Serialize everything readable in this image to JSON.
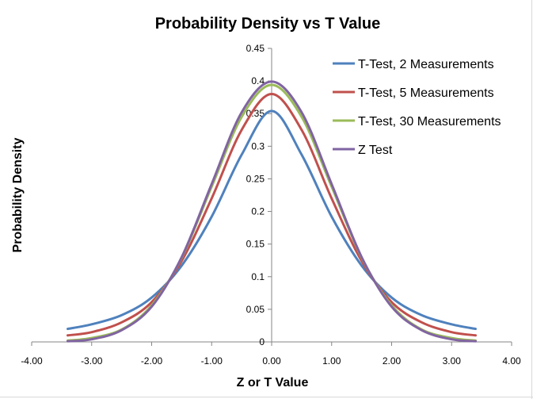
{
  "chart_data": {
    "type": "line",
    "title": "Probability Density vs T Value",
    "xlabel": "Z or T Value",
    "ylabel": "Probability Density",
    "xlim": [
      -4,
      4
    ],
    "ylim": [
      0,
      0.45
    ],
    "x_ticks": [
      -4,
      -3,
      -2,
      -1,
      0,
      1,
      2,
      3,
      4
    ],
    "x_tick_labels": [
      "-4.00",
      "-3.00",
      "-2.00",
      "-1.00",
      "0.00",
      "1.00",
      "2.00",
      "3.00",
      "4.00"
    ],
    "y_ticks": [
      0,
      0.05,
      0.1,
      0.15,
      0.2,
      0.25,
      0.3,
      0.35,
      0.4,
      0.45
    ],
    "y_tick_labels": [
      "0",
      "0.05",
      "0.1",
      "0.15",
      "0.2",
      "0.25",
      "0.3",
      "0.35",
      "0.4",
      "0.45"
    ],
    "grid": false,
    "legend_position": "top-right",
    "x": [
      -3.4,
      -3.0,
      -2.5,
      -2.0,
      -1.5,
      -1.0,
      -0.5,
      0.0,
      0.5,
      1.0,
      1.5,
      2.0,
      2.5,
      3.0,
      3.4
    ],
    "series": [
      {
        "name": "T-Test, 2 Measurements",
        "color": "#4f81bd",
        "values": [
          0.02,
          0.027,
          0.041,
          0.068,
          0.117,
          0.192,
          0.287,
          0.354,
          0.287,
          0.192,
          0.117,
          0.068,
          0.041,
          0.027,
          0.02
        ]
      },
      {
        "name": "T-Test, 5 Measurements",
        "color": "#c0504d",
        "values": [
          0.01,
          0.015,
          0.03,
          0.061,
          0.124,
          0.22,
          0.325,
          0.38,
          0.325,
          0.22,
          0.124,
          0.061,
          0.03,
          0.015,
          0.01
        ]
      },
      {
        "name": "T-Test, 30 Measurements",
        "color": "#9bbb59",
        "values": [
          0.002,
          0.006,
          0.019,
          0.056,
          0.129,
          0.238,
          0.345,
          0.394,
          0.345,
          0.238,
          0.129,
          0.056,
          0.019,
          0.006,
          0.002
        ]
      },
      {
        "name": "Z Test",
        "color": "#8064a2",
        "values": [
          0.001,
          0.004,
          0.018,
          0.054,
          0.13,
          0.242,
          0.352,
          0.399,
          0.352,
          0.242,
          0.13,
          0.054,
          0.018,
          0.004,
          0.001
        ]
      }
    ]
  }
}
